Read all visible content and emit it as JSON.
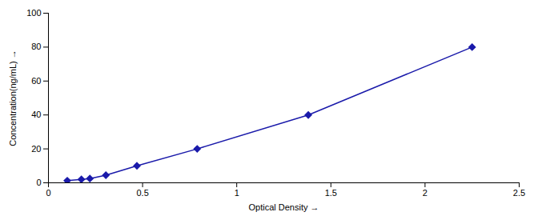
{
  "chart_data": {
    "type": "line",
    "xlabel": "Optical Density",
    "ylabel": "Concentration(ng/mL)",
    "x": [
      0.1,
      0.175,
      0.22,
      0.305,
      0.47,
      0.79,
      1.38,
      2.25
    ],
    "values": [
      1.25,
      2.0,
      2.5,
      4.5,
      10.0,
      20.0,
      40.0,
      80.0
    ],
    "color": "#1a1aaa",
    "marker": "diamond",
    "xlim": [
      0,
      2.5
    ],
    "ylim": [
      0,
      100
    ],
    "xticks": [
      0,
      0.5,
      1,
      1.5,
      2,
      2.5
    ],
    "yticks": [
      0,
      20,
      40,
      60,
      80,
      100
    ],
    "grid": false
  }
}
